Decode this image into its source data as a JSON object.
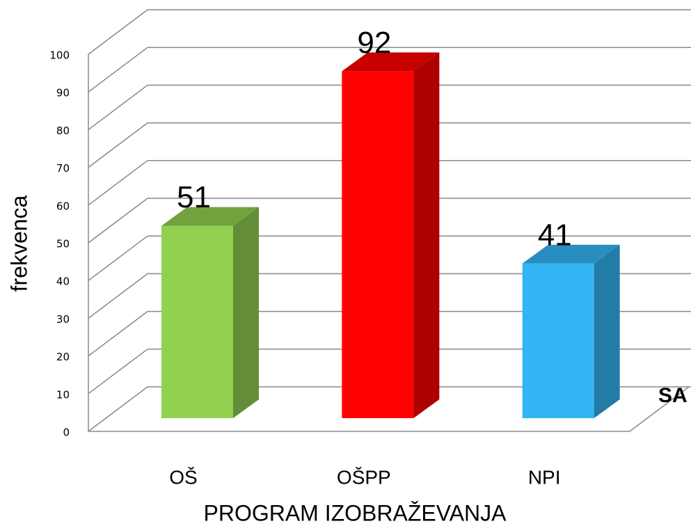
{
  "chart_data": {
    "type": "bar3d",
    "categories": [
      "OŠ",
      "OŠPP",
      "NPI"
    ],
    "values": [
      51,
      92,
      41
    ],
    "colors": [
      "#92d050",
      "#ff0000",
      "#33b5f5"
    ],
    "ylim": [
      0,
      100
    ],
    "yticks": [
      0,
      10,
      20,
      30,
      40,
      50,
      60,
      70,
      80,
      90,
      100
    ],
    "grid": true,
    "y_label": "frekvenca",
    "x_label": "PROGRAM IZOBRAŽEVANJA",
    "annotation": "SA"
  }
}
